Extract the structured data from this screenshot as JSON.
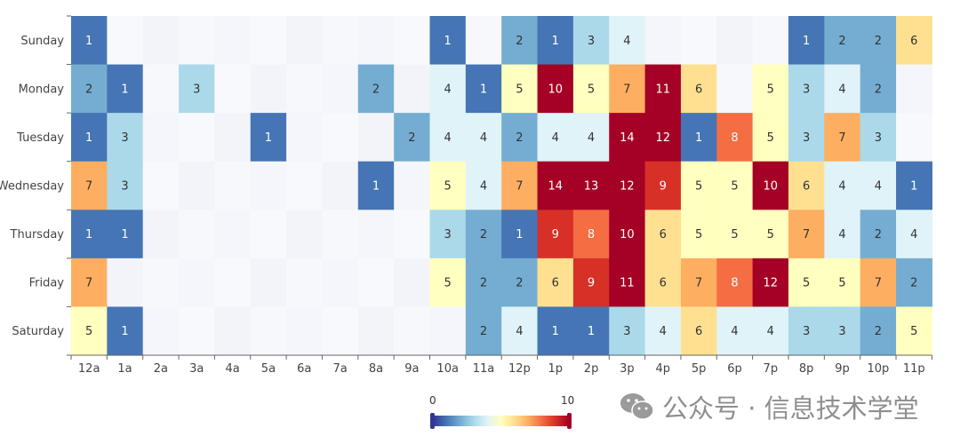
{
  "chart_data": {
    "type": "heatmap",
    "title": "",
    "xlabel": "",
    "ylabel": "",
    "x_categories": [
      "12a",
      "1a",
      "2a",
      "3a",
      "4a",
      "5a",
      "6a",
      "7a",
      "8a",
      "9a",
      "10a",
      "11a",
      "12p",
      "1p",
      "2p",
      "3p",
      "4p",
      "5p",
      "6p",
      "7p",
      "8p",
      "9p",
      "10p",
      "11p"
    ],
    "y_categories": [
      "Sunday",
      "Monday",
      "Tuesday",
      "Wednesday",
      "Thursday",
      "Friday",
      "Saturday"
    ],
    "values": [
      [
        1,
        null,
        null,
        null,
        null,
        null,
        null,
        null,
        null,
        null,
        1,
        null,
        2,
        1,
        3,
        4,
        null,
        null,
        null,
        null,
        1,
        2,
        2,
        6
      ],
      [
        2,
        1,
        null,
        3,
        null,
        null,
        null,
        null,
        2,
        null,
        4,
        1,
        5,
        10,
        5,
        7,
        11,
        6,
        null,
        5,
        3,
        4,
        2,
        null
      ],
      [
        1,
        3,
        null,
        null,
        null,
        1,
        null,
        null,
        null,
        2,
        4,
        4,
        2,
        4,
        4,
        14,
        12,
        1,
        8,
        5,
        3,
        7,
        3,
        null
      ],
      [
        7,
        3,
        null,
        null,
        null,
        null,
        null,
        null,
        1,
        null,
        5,
        4,
        7,
        14,
        13,
        12,
        9,
        5,
        5,
        10,
        6,
        4,
        4,
        1
      ],
      [
        1,
        1,
        null,
        null,
        null,
        null,
        null,
        null,
        null,
        null,
        3,
        2,
        1,
        9,
        8,
        10,
        6,
        5,
        5,
        5,
        7,
        4,
        2,
        4
      ],
      [
        7,
        null,
        null,
        null,
        null,
        null,
        null,
        null,
        null,
        null,
        5,
        2,
        2,
        6,
        9,
        11,
        6,
        7,
        8,
        12,
        5,
        5,
        7,
        2
      ],
      [
        5,
        1,
        null,
        null,
        null,
        null,
        null,
        null,
        null,
        null,
        null,
        2,
        4,
        1,
        1,
        3,
        4,
        6,
        4,
        4,
        3,
        3,
        2,
        5
      ]
    ],
    "visual_map": {
      "min": 0,
      "max": 10,
      "min_label": "0",
      "max_label": "10"
    },
    "colors": [
      "#313695",
      "#4575b4",
      "#74add1",
      "#abd9e9",
      "#e0f3f8",
      "#ffffbf",
      "#fee090",
      "#fdae61",
      "#f46d43",
      "#d73027",
      "#a50026"
    ],
    "empty_color": "#f4f6fb",
    "grid": false,
    "legend": "bottom-center"
  },
  "watermark": {
    "text": "公众号 · 信息技术学堂",
    "icon": "wechat-icon"
  }
}
